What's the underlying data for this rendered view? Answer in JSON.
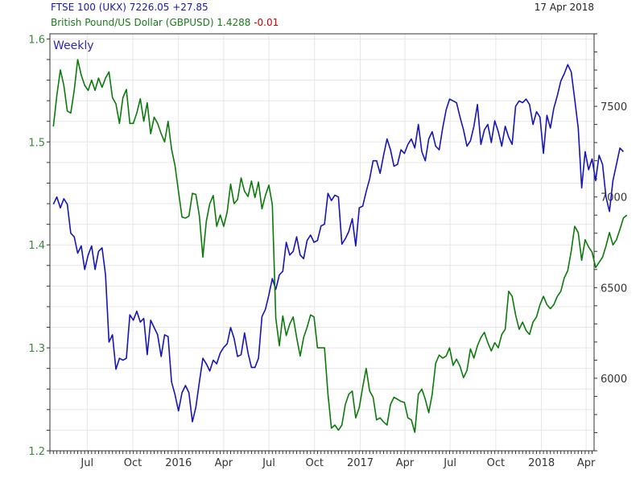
{
  "header": {
    "ftse_label": "FTSE 100 (UKX) 7226.05 +27.85",
    "gbp_label": "British Pound/US Dollar (GBPUSD) 1.4288",
    "gbp_change": "-0.01",
    "date": "17 Apr 2018"
  },
  "chart_data": [
    {
      "type": "line",
      "title": "",
      "annotation": "Weekly",
      "x_ticks": [
        "Jul",
        "Oct",
        "2016",
        "Apr",
        "Jul",
        "Oct",
        "2017",
        "Apr",
        "Jul",
        "Oct",
        "2018",
        "Apr"
      ],
      "xlim": [
        "2015-04-17",
        "2018-04-17"
      ],
      "left_axis": {
        "series": "GBPUSD",
        "ticks": [
          "1.2",
          "1.3",
          "1.4",
          "1.5",
          "1.6"
        ],
        "ylim": [
          1.2,
          1.605
        ]
      },
      "right_axis": {
        "series": "FTSE 100",
        "ticks": [
          "6000",
          "6500",
          "7000",
          "7500"
        ],
        "ylim": [
          5600,
          7900
        ]
      },
      "grid": true,
      "series": [
        {
          "name": "FTSE 100 (UKX)",
          "axis": "right",
          "color": "#1515b8",
          "y": [
            6960,
            7000,
            6940,
            6990,
            6960,
            6800,
            6780,
            6690,
            6730,
            6600,
            6680,
            6730,
            6600,
            6700,
            6720,
            6570,
            6200,
            6240,
            6050,
            6110,
            6100,
            6110,
            6350,
            6320,
            6370,
            6310,
            6330,
            6130,
            6320,
            6280,
            6240,
            6120,
            6240,
            6230,
            5980,
            5910,
            5820,
            5920,
            5960,
            5920,
            5760,
            5840,
            5980,
            6110,
            6080,
            6040,
            6100,
            6080,
            6140,
            6170,
            6190,
            6280,
            6220,
            6120,
            6130,
            6250,
            6140,
            6060,
            6060,
            6110,
            6340,
            6380,
            6460,
            6550,
            6490,
            6570,
            6590,
            6750,
            6680,
            6700,
            6780,
            6680,
            6660,
            6760,
            6790,
            6750,
            6760,
            6840,
            6850,
            7020,
            6980,
            7010,
            7000,
            6740,
            6770,
            6810,
            6880,
            6730,
            6940,
            6950,
            7030,
            7100,
            7200,
            7200,
            7130,
            7230,
            7320,
            7260,
            7170,
            7180,
            7260,
            7240,
            7290,
            7320,
            7270,
            7400,
            7250,
            7200,
            7320,
            7360,
            7280,
            7260,
            7380,
            7480,
            7540,
            7530,
            7520,
            7440,
            7370,
            7280,
            7310,
            7390,
            7510,
            7290,
            7370,
            7400,
            7300,
            7420,
            7360,
            7280,
            7390,
            7330,
            7290,
            7500,
            7530,
            7520,
            7540,
            7510,
            7400,
            7470,
            7440,
            7240,
            7450,
            7380,
            7490,
            7560,
            7640,
            7680,
            7730,
            7690,
            7540,
            7380,
            7050,
            7250,
            7150,
            7210,
            7090,
            7230,
            7180,
            7000,
            6920,
            7090,
            7180,
            7270,
            7250
          ],
          "x_start": "2015-04-24",
          "x_step_days": 7
        },
        {
          "name": "British Pound/US Dollar (GBPUSD)",
          "axis": "left",
          "color": "#0b7a0b",
          "y": [
            1.515,
            1.545,
            1.57,
            1.555,
            1.53,
            1.528,
            1.55,
            1.58,
            1.565,
            1.555,
            1.55,
            1.56,
            1.55,
            1.562,
            1.553,
            1.562,
            1.568,
            1.543,
            1.537,
            1.518,
            1.543,
            1.551,
            1.518,
            1.518,
            1.528,
            1.542,
            1.52,
            1.538,
            1.508,
            1.524,
            1.518,
            1.508,
            1.5,
            1.52,
            1.493,
            1.477,
            1.452,
            1.427,
            1.426,
            1.428,
            1.45,
            1.449,
            1.428,
            1.388,
            1.423,
            1.44,
            1.448,
            1.418,
            1.429,
            1.418,
            1.432,
            1.459,
            1.44,
            1.444,
            1.465,
            1.452,
            1.447,
            1.462,
            1.446,
            1.461,
            1.435,
            1.448,
            1.458,
            1.439,
            1.329,
            1.302,
            1.331,
            1.312,
            1.323,
            1.33,
            1.31,
            1.292,
            1.31,
            1.32,
            1.332,
            1.33,
            1.3,
            1.3,
            1.3,
            1.255,
            1.222,
            1.225,
            1.22,
            1.225,
            1.245,
            1.255,
            1.258,
            1.232,
            1.242,
            1.262,
            1.28,
            1.258,
            1.252,
            1.23,
            1.232,
            1.228,
            1.225,
            1.245,
            1.252,
            1.25,
            1.248,
            1.247,
            1.232,
            1.23,
            1.218,
            1.255,
            1.26,
            1.25,
            1.237,
            1.255,
            1.285,
            1.293,
            1.29,
            1.292,
            1.3,
            1.283,
            1.289,
            1.282,
            1.271,
            1.278,
            1.299,
            1.29,
            1.302,
            1.31,
            1.315,
            1.305,
            1.297,
            1.305,
            1.3,
            1.313,
            1.318,
            1.355,
            1.35,
            1.332,
            1.318,
            1.325,
            1.317,
            1.313,
            1.325,
            1.33,
            1.342,
            1.35,
            1.342,
            1.338,
            1.342,
            1.35,
            1.355,
            1.368,
            1.375,
            1.394,
            1.418,
            1.412,
            1.385,
            1.405,
            1.398,
            1.393,
            1.378,
            1.383,
            1.388,
            1.399,
            1.412,
            1.4,
            1.405,
            1.415,
            1.426,
            1.429
          ],
          "x_start": "2015-04-24",
          "x_step_days": 7
        }
      ]
    }
  ]
}
